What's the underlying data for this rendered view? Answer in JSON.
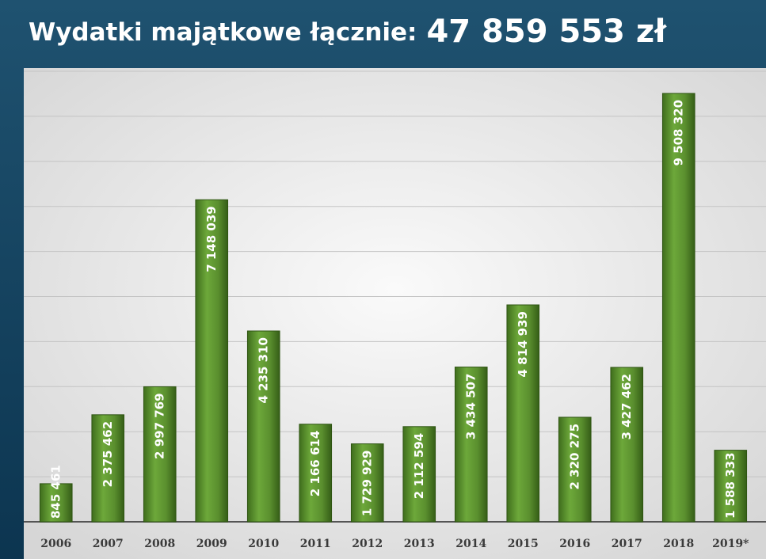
{
  "chart_data": {
    "type": "bar",
    "title": "Wydatki majątkowe łącznie:",
    "title_value": "47 859 553 zł",
    "categories": [
      "2006",
      "2007",
      "2008",
      "2009",
      "2010",
      "2011",
      "2012",
      "2013",
      "2014",
      "2015",
      "2016",
      "2017",
      "2018",
      "2019*"
    ],
    "values": [
      845461,
      2375462,
      2997769,
      7148039,
      4235310,
      2166614,
      1729929,
      2112594,
      3434507,
      4814939,
      2320275,
      3427462,
      9508320,
      1588333
    ],
    "value_labels": [
      "845 461",
      "2 375 462",
      "2 997 769",
      "7 148 039",
      "4 235 310",
      "2 166 614",
      "1 729 929",
      "2 112 594",
      "3 434 507",
      "4 814 939",
      "2 320 275",
      "3 427 462",
      "9 508 320",
      "1 588 333"
    ],
    "color": "#5a8f2e",
    "ylim": [
      0,
      10000000
    ],
    "yticks": [
      0,
      1000000,
      2000000,
      3000000,
      4000000,
      5000000,
      6000000,
      7000000,
      8000000,
      9000000,
      10000000
    ],
    "grid": true
  }
}
